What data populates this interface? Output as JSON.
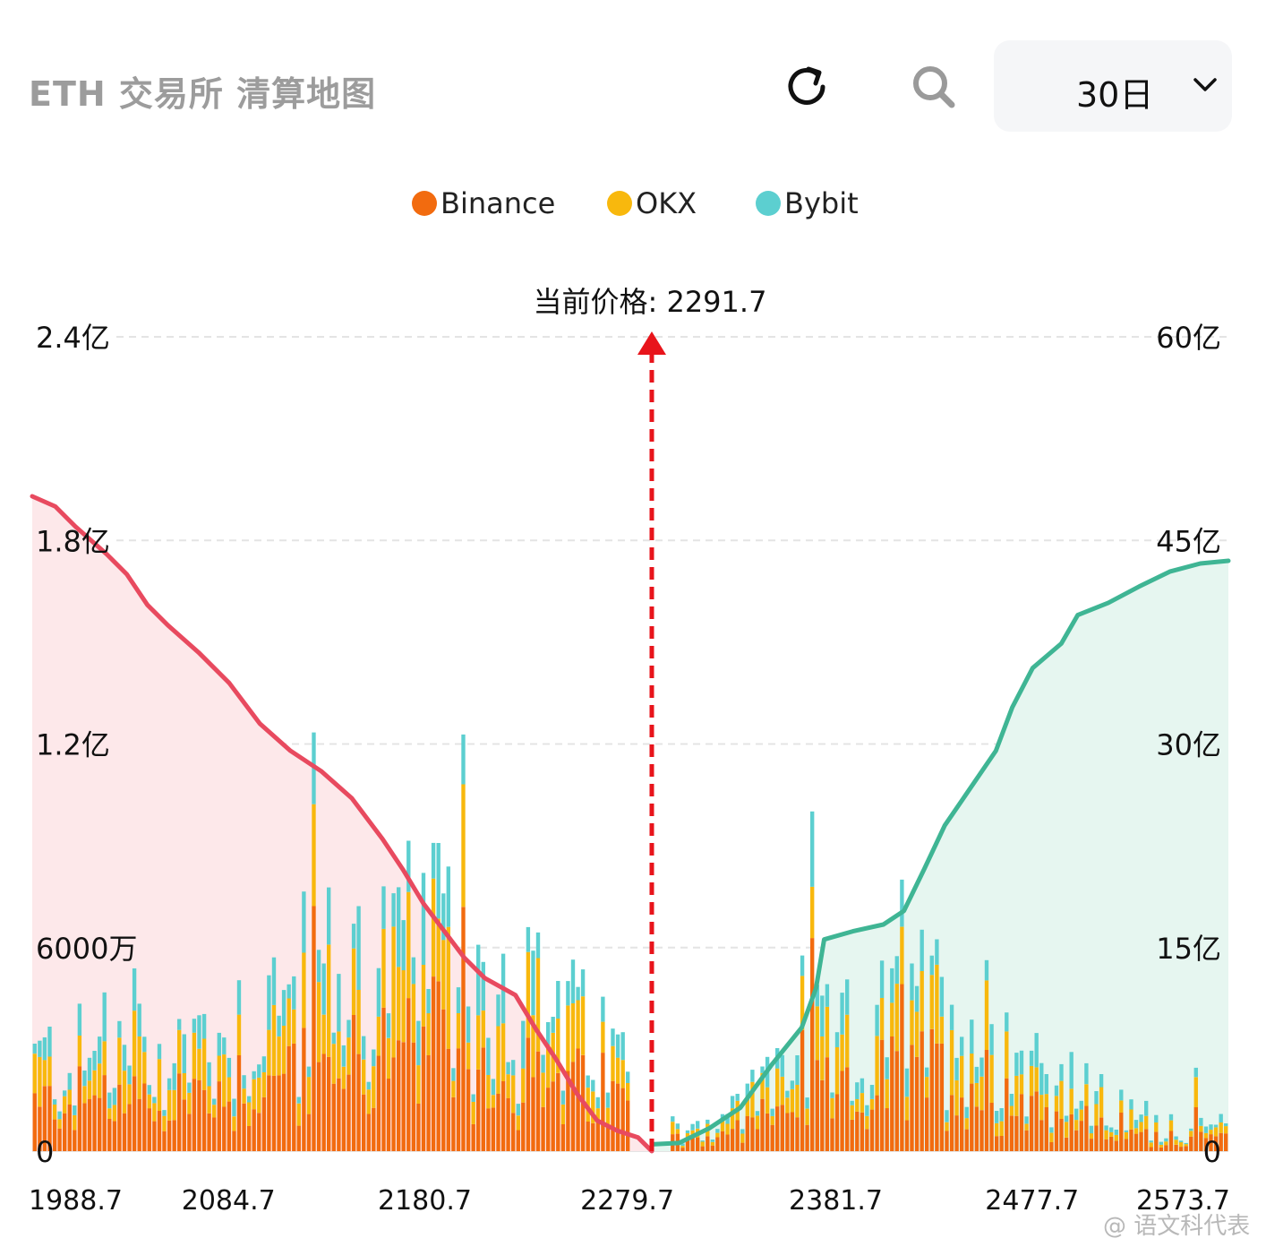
{
  "header": {
    "title": "ETH 交易所 清算地图",
    "refresh_icon": "refresh-icon",
    "search_icon": "search-icon",
    "period": {
      "selected": "30日",
      "icon": "chevron-down-icon"
    }
  },
  "legend": [
    {
      "label": "Binance",
      "color": "#f26b0f"
    },
    {
      "label": "OKX",
      "color": "#f8b80d"
    },
    {
      "label": "Bybit",
      "color": "#5ccfd0"
    }
  ],
  "chart_data": {
    "type": "bar",
    "current_price_label": "当前价格: 2291.7",
    "current_price": 2291.7,
    "x_range": [
      1988.7,
      2573.7
    ],
    "x_ticks": [
      "1988.7",
      "2084.7",
      "2180.7",
      "2279.7",
      "2381.7",
      "2477.7",
      "2573.7"
    ],
    "x_tick_values": [
      1988.7,
      2084.7,
      2180.7,
      2279.7,
      2381.7,
      2477.7,
      2573.7
    ],
    "y_left": {
      "ticks": [
        "0",
        "6000万",
        "1.2亿",
        "1.8亿",
        "2.4亿"
      ],
      "range": [
        0,
        240000000
      ]
    },
    "y_right": {
      "ticks": [
        "0",
        "15亿",
        "30亿",
        "45亿",
        "60亿"
      ],
      "range": [
        0,
        6000000000
      ]
    },
    "grid": true,
    "bar_count": 240,
    "bar_stack_order": [
      "Binance",
      "OKX",
      "Bybit"
    ],
    "series": [
      {
        "name": "Binance",
        "color": "#f26b0f"
      },
      {
        "name": "OKX",
        "color": "#f8b80d"
      },
      {
        "name": "Bybit",
        "color": "#5ccfd0"
      }
    ],
    "cumulative_lines": [
      {
        "side": "long",
        "axis": "left",
        "color": "#e84a5f",
        "fill": "#fde8ea",
        "points": [
          [
            1988.7,
            193000000
          ],
          [
            2000,
            190000000
          ],
          [
            2010,
            184000000
          ],
          [
            2025,
            176000000
          ],
          [
            2035,
            170000000
          ],
          [
            2045,
            161000000
          ],
          [
            2055,
            155000000
          ],
          [
            2070,
            147000000
          ],
          [
            2085,
            138000000
          ],
          [
            2100,
            126000000
          ],
          [
            2115,
            118000000
          ],
          [
            2130,
            112000000
          ],
          [
            2145,
            104000000
          ],
          [
            2160,
            92000000
          ],
          [
            2170,
            83000000
          ],
          [
            2180,
            73000000
          ],
          [
            2190,
            65000000
          ],
          [
            2200,
            57000000
          ],
          [
            2210,
            51000000
          ],
          [
            2225,
            46000000
          ],
          [
            2235,
            36000000
          ],
          [
            2245,
            27000000
          ],
          [
            2255,
            17000000
          ],
          [
            2265,
            9000000
          ],
          [
            2275,
            6000000
          ],
          [
            2285,
            4000000
          ],
          [
            2291.7,
            0
          ]
        ]
      },
      {
        "side": "short",
        "axis": "right",
        "color": "#3fb594",
        "fill": "#e6f6f0",
        "points": [
          [
            2291.7,
            50000000
          ],
          [
            2305,
            60000000
          ],
          [
            2320,
            170000000
          ],
          [
            2335,
            320000000
          ],
          [
            2350,
            630000000
          ],
          [
            2365,
            910000000
          ],
          [
            2372,
            1200000000
          ],
          [
            2376,
            1560000000
          ],
          [
            2390,
            1620000000
          ],
          [
            2405,
            1670000000
          ],
          [
            2415,
            1770000000
          ],
          [
            2425,
            2080000000
          ],
          [
            2435,
            2400000000
          ],
          [
            2445,
            2620000000
          ],
          [
            2460,
            2950000000
          ],
          [
            2468,
            3270000000
          ],
          [
            2478,
            3560000000
          ],
          [
            2492,
            3740000000
          ],
          [
            2500,
            3950000000
          ],
          [
            2515,
            4040000000
          ],
          [
            2530,
            4160000000
          ],
          [
            2545,
            4270000000
          ],
          [
            2560,
            4330000000
          ],
          [
            2573.7,
            4350000000
          ]
        ]
      }
    ]
  },
  "watermark": {
    "weibo": "@ 语文科代表"
  }
}
